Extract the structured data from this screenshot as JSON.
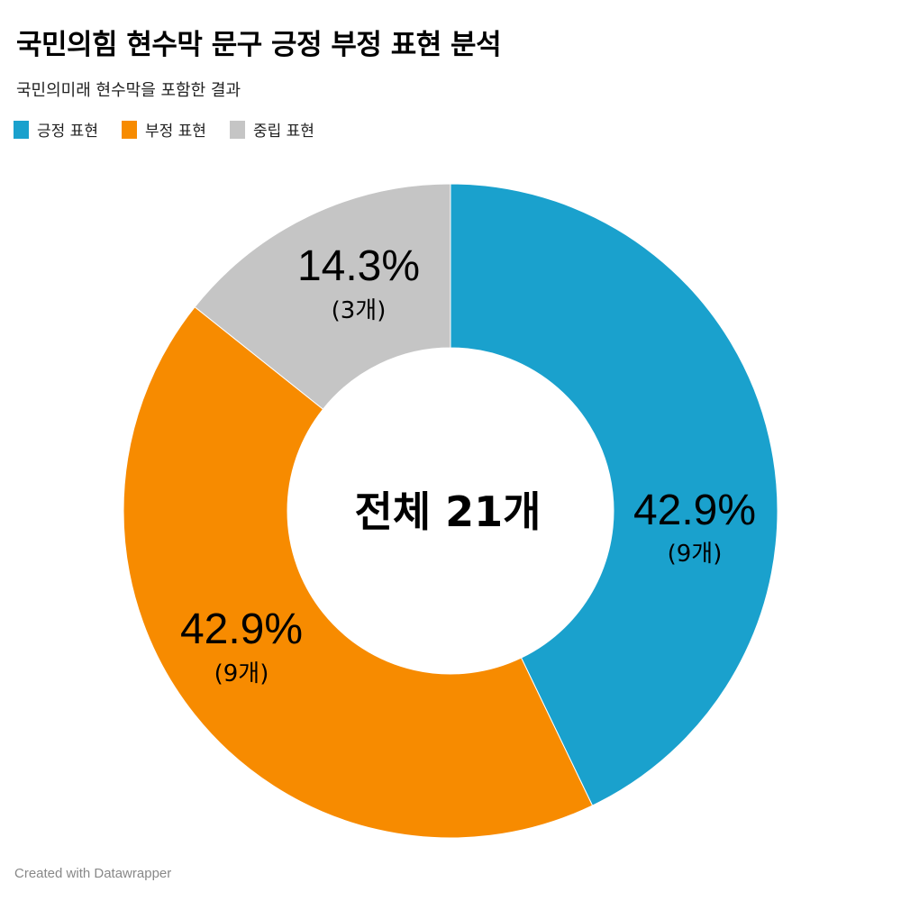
{
  "header": {
    "title": "국민의힘 현수막 문구 긍정 부정 표현 분석",
    "subtitle": "국민의미래 현수막을 포함한 결과"
  },
  "legend": [
    {
      "label": "긍정 표현",
      "color": "#1aa1cd"
    },
    {
      "label": "부정 표현",
      "color": "#f78b00"
    },
    {
      "label": "중립 표현",
      "color": "#c5c5c5"
    }
  ],
  "center_label": "전체 21개",
  "slices": [
    {
      "pct_label": "42.9%",
      "count_label": "(9개)"
    },
    {
      "pct_label": "42.9%",
      "count_label": "(9개)"
    },
    {
      "pct_label": "14.3%",
      "count_label": "(3개)"
    }
  ],
  "footer": "Created with Datawrapper",
  "chart_data": {
    "type": "pie",
    "variant": "donut",
    "title": "국민의힘 현수막 문구 긍정 부정 표현 분석",
    "subtitle": "국민의미래 현수막을 포함한 결과",
    "categories": [
      "긍정 표현",
      "부정 표현",
      "중립 표현"
    ],
    "values": [
      9,
      9,
      3
    ],
    "percentages": [
      42.9,
      42.9,
      14.3
    ],
    "colors": [
      "#1aa1cd",
      "#f78b00",
      "#c5c5c5"
    ],
    "total": 21,
    "center_annotation": "전체 21개",
    "legend_position": "top-left",
    "start_angle_deg": 0,
    "direction": "clockwise"
  }
}
